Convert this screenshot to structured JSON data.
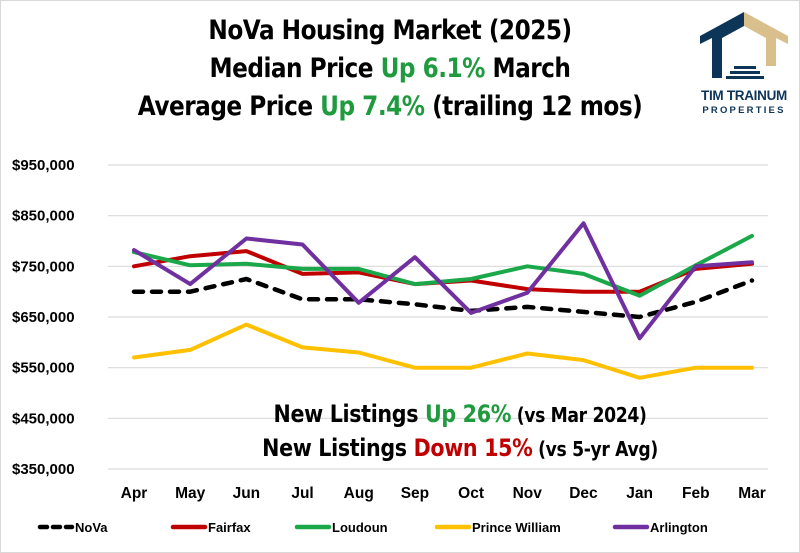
{
  "header": {
    "title_line1": "NoVa Housing Market (2025)",
    "title_line2_pre": "Median Price ",
    "title_line2_hl": "Up 6.1%",
    "title_line2_post": " March",
    "title_line3_pre": "Average Price ",
    "title_line3_hl": "Up 7.4%",
    "title_line3_post": " (trailing 12 mos)"
  },
  "logo": {
    "name": "TIM TRAINUM",
    "subtitle": "PROPERTIES",
    "colors": {
      "navy": "#0d3558",
      "tan": "#d8bf8c"
    }
  },
  "annotations": {
    "line1_pre": "New Listings ",
    "line1_hl": "Up 26%",
    "line1_post": " (vs Mar 2024)",
    "line2_pre": "New Listings ",
    "line2_hl": "Down 15%",
    "line2_post": " (vs 5-yr Avg)",
    "colors": {
      "up": "#1f9a3f",
      "down": "#c00000"
    }
  },
  "chart_data": {
    "type": "line",
    "title": "NoVa Housing Market (2025)",
    "xlabel": "",
    "ylabel": "",
    "categories": [
      "Apr",
      "May",
      "Jun",
      "Jul",
      "Aug",
      "Sep",
      "Oct",
      "Nov",
      "Dec",
      "Jan",
      "Feb",
      "Mar"
    ],
    "ylim": [
      350000,
      950000
    ],
    "yticks": [
      350000,
      450000,
      550000,
      650000,
      750000,
      850000,
      950000
    ],
    "ytick_labels": [
      "$350,000",
      "$450,000",
      "$550,000",
      "$650,000",
      "$750,000",
      "$850,000",
      "$950,000"
    ],
    "grid": true,
    "legend_position": "bottom",
    "series": [
      {
        "name": "NoVa",
        "color": "#000000",
        "style": "dashed",
        "values": [
          700000,
          700000,
          725000,
          685000,
          685000,
          675000,
          662000,
          670000,
          660000,
          650000,
          680000,
          722000
        ]
      },
      {
        "name": "Fairfax",
        "color": "#c00000",
        "style": "solid",
        "values": [
          750000,
          770000,
          780000,
          735000,
          738000,
          715000,
          722000,
          705000,
          700000,
          700000,
          745000,
          755000
        ]
      },
      {
        "name": "Loudoun",
        "color": "#1aa84a",
        "style": "solid",
        "values": [
          778000,
          752000,
          755000,
          745000,
          745000,
          715000,
          725000,
          750000,
          735000,
          692000,
          752000,
          810000
        ]
      },
      {
        "name": "Prince William",
        "color": "#ffc000",
        "style": "solid",
        "values": [
          570000,
          585000,
          635000,
          590000,
          580000,
          550000,
          550000,
          578000,
          565000,
          530000,
          550000,
          550000
        ]
      },
      {
        "name": "Arlington",
        "color": "#7030a0",
        "style": "solid",
        "values": [
          782000,
          715000,
          805000,
          793000,
          678000,
          768000,
          658000,
          698000,
          835000,
          608000,
          750000,
          758000
        ]
      }
    ]
  }
}
